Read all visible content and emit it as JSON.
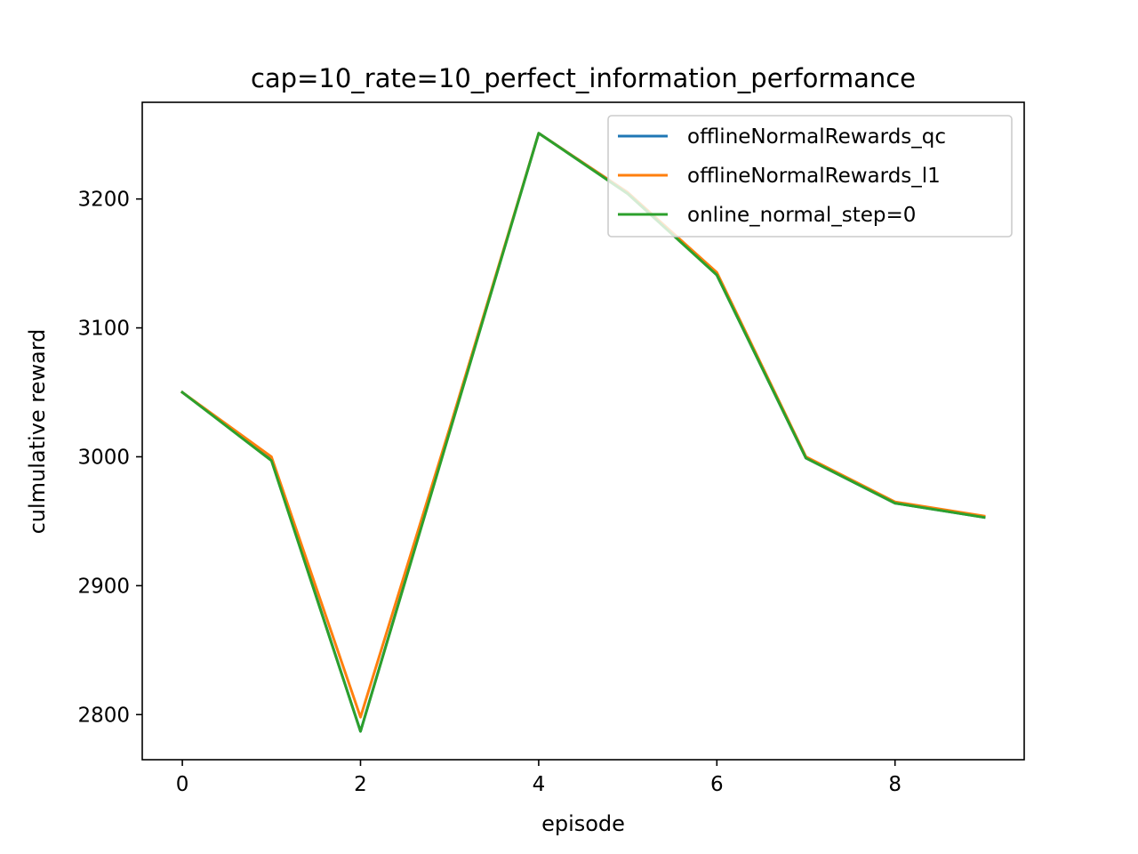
{
  "chart_data": {
    "type": "line",
    "title": "cap=10_rate=10_perfect_information_performance",
    "xlabel": "episode",
    "ylabel": "culmulative reward",
    "x": [
      0,
      1,
      2,
      3,
      4,
      5,
      6,
      7,
      8,
      9
    ],
    "xlim": [
      -0.45,
      9.45
    ],
    "ylim": [
      2765,
      3275
    ],
    "xticks": [
      0,
      2,
      4,
      6,
      8
    ],
    "yticks": [
      2800,
      2900,
      3000,
      3100,
      3200
    ],
    "grid": false,
    "legend_position": "top-right",
    "series": [
      {
        "name": "offlineNormalRewards_qc",
        "color": "#1f77b4",
        "values": [
          3050,
          2998,
          2787,
          3020,
          3251,
          3205,
          3141,
          2999,
          2964,
          2953
        ]
      },
      {
        "name": "offlineNormalRewards_l1",
        "color": "#ff7f0e",
        "values": [
          3050,
          3000,
          2798,
          3022,
          3251,
          3205,
          3143,
          3000,
          2965,
          2954
        ]
      },
      {
        "name": "online_normal_step=0",
        "color": "#2ca02c",
        "values": [
          3050,
          2997,
          2787,
          3019,
          3251,
          3204,
          3141,
          2999,
          2964,
          2953
        ]
      }
    ]
  }
}
